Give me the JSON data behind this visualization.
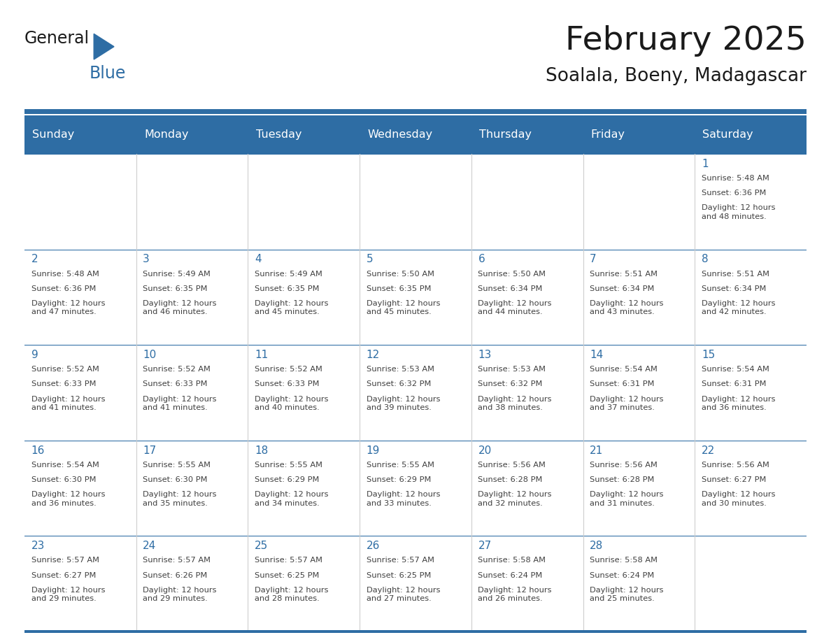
{
  "title": "February 2025",
  "subtitle": "Soalala, Boeny, Madagascar",
  "days_of_week": [
    "Sunday",
    "Monday",
    "Tuesday",
    "Wednesday",
    "Thursday",
    "Friday",
    "Saturday"
  ],
  "header_bg": "#2E6DA4",
  "header_text": "#FFFFFF",
  "cell_bg": "#FFFFFF",
  "cell_border_color": "#2E6DA4",
  "cell_line_color": "#CCCCCC",
  "day_num_color": "#2E6DA4",
  "info_text_color": "#404040",
  "title_color": "#1a1a1a",
  "subtitle_color": "#1a1a1a",
  "logo_general_color": "#1a1a1a",
  "logo_blue_color": "#2E6DA4",
  "calendar": [
    [
      null,
      null,
      null,
      null,
      null,
      null,
      {
        "day": 1,
        "sunrise": "5:48 AM",
        "sunset": "6:36 PM",
        "daylight": "12 hours\nand 48 minutes."
      }
    ],
    [
      {
        "day": 2,
        "sunrise": "5:48 AM",
        "sunset": "6:36 PM",
        "daylight": "12 hours\nand 47 minutes."
      },
      {
        "day": 3,
        "sunrise": "5:49 AM",
        "sunset": "6:35 PM",
        "daylight": "12 hours\nand 46 minutes."
      },
      {
        "day": 4,
        "sunrise": "5:49 AM",
        "sunset": "6:35 PM",
        "daylight": "12 hours\nand 45 minutes."
      },
      {
        "day": 5,
        "sunrise": "5:50 AM",
        "sunset": "6:35 PM",
        "daylight": "12 hours\nand 45 minutes."
      },
      {
        "day": 6,
        "sunrise": "5:50 AM",
        "sunset": "6:34 PM",
        "daylight": "12 hours\nand 44 minutes."
      },
      {
        "day": 7,
        "sunrise": "5:51 AM",
        "sunset": "6:34 PM",
        "daylight": "12 hours\nand 43 minutes."
      },
      {
        "day": 8,
        "sunrise": "5:51 AM",
        "sunset": "6:34 PM",
        "daylight": "12 hours\nand 42 minutes."
      }
    ],
    [
      {
        "day": 9,
        "sunrise": "5:52 AM",
        "sunset": "6:33 PM",
        "daylight": "12 hours\nand 41 minutes."
      },
      {
        "day": 10,
        "sunrise": "5:52 AM",
        "sunset": "6:33 PM",
        "daylight": "12 hours\nand 41 minutes."
      },
      {
        "day": 11,
        "sunrise": "5:52 AM",
        "sunset": "6:33 PM",
        "daylight": "12 hours\nand 40 minutes."
      },
      {
        "day": 12,
        "sunrise": "5:53 AM",
        "sunset": "6:32 PM",
        "daylight": "12 hours\nand 39 minutes."
      },
      {
        "day": 13,
        "sunrise": "5:53 AM",
        "sunset": "6:32 PM",
        "daylight": "12 hours\nand 38 minutes."
      },
      {
        "day": 14,
        "sunrise": "5:54 AM",
        "sunset": "6:31 PM",
        "daylight": "12 hours\nand 37 minutes."
      },
      {
        "day": 15,
        "sunrise": "5:54 AM",
        "sunset": "6:31 PM",
        "daylight": "12 hours\nand 36 minutes."
      }
    ],
    [
      {
        "day": 16,
        "sunrise": "5:54 AM",
        "sunset": "6:30 PM",
        "daylight": "12 hours\nand 36 minutes."
      },
      {
        "day": 17,
        "sunrise": "5:55 AM",
        "sunset": "6:30 PM",
        "daylight": "12 hours\nand 35 minutes."
      },
      {
        "day": 18,
        "sunrise": "5:55 AM",
        "sunset": "6:29 PM",
        "daylight": "12 hours\nand 34 minutes."
      },
      {
        "day": 19,
        "sunrise": "5:55 AM",
        "sunset": "6:29 PM",
        "daylight": "12 hours\nand 33 minutes."
      },
      {
        "day": 20,
        "sunrise": "5:56 AM",
        "sunset": "6:28 PM",
        "daylight": "12 hours\nand 32 minutes."
      },
      {
        "day": 21,
        "sunrise": "5:56 AM",
        "sunset": "6:28 PM",
        "daylight": "12 hours\nand 31 minutes."
      },
      {
        "day": 22,
        "sunrise": "5:56 AM",
        "sunset": "6:27 PM",
        "daylight": "12 hours\nand 30 minutes."
      }
    ],
    [
      {
        "day": 23,
        "sunrise": "5:57 AM",
        "sunset": "6:27 PM",
        "daylight": "12 hours\nand 29 minutes."
      },
      {
        "day": 24,
        "sunrise": "5:57 AM",
        "sunset": "6:26 PM",
        "daylight": "12 hours\nand 29 minutes."
      },
      {
        "day": 25,
        "sunrise": "5:57 AM",
        "sunset": "6:25 PM",
        "daylight": "12 hours\nand 28 minutes."
      },
      {
        "day": 26,
        "sunrise": "5:57 AM",
        "sunset": "6:25 PM",
        "daylight": "12 hours\nand 27 minutes."
      },
      {
        "day": 27,
        "sunrise": "5:58 AM",
        "sunset": "6:24 PM",
        "daylight": "12 hours\nand 26 minutes."
      },
      {
        "day": 28,
        "sunrise": "5:58 AM",
        "sunset": "6:24 PM",
        "daylight": "12 hours\nand 25 minutes."
      },
      null
    ]
  ],
  "num_rows": 5,
  "num_cols": 7,
  "fig_width": 11.88,
  "fig_height": 9.18
}
